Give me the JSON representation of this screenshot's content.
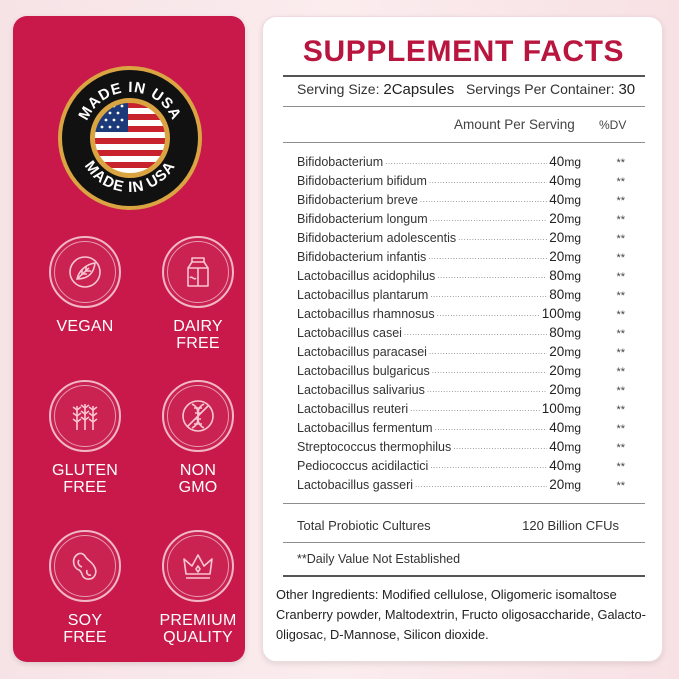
{
  "badge": {
    "top_text": "MADE IN USA",
    "bottom_text": "MADE IN USA"
  },
  "features": [
    {
      "icon": "vegan-leaf-icon",
      "label": "VEGAN"
    },
    {
      "icon": "milk-carton-icon",
      "label": "DAIRY\nFREE"
    },
    {
      "icon": "wheat-icon",
      "label": "GLUTEN\nFREE"
    },
    {
      "icon": "dna-icon",
      "label": "NON\nGMO"
    },
    {
      "icon": "soybean-icon",
      "label": "SOY\nFREE"
    },
    {
      "icon": "crown-icon",
      "label": "PREMIUM\nQUALITY"
    }
  ],
  "facts": {
    "title": "SUPPLEMENT FACTS",
    "serving_size_label": "Serving Size:",
    "serving_size_value": "2Capsules",
    "servings_label": "Servings Per Container:",
    "servings_value": "30",
    "amount_header": "Amount Per Serving",
    "dv_header": "%DV",
    "ingredients": [
      {
        "name": "Bifidobacterium",
        "amount": "40",
        "unit": "mg",
        "dv": "**"
      },
      {
        "name": "Bifidobacterium bifidum",
        "amount": "40",
        "unit": "mg",
        "dv": "**"
      },
      {
        "name": "Bifidobacterium breve",
        "amount": "40",
        "unit": "mg",
        "dv": "**"
      },
      {
        "name": "Bifidobacterium longum",
        "amount": "20",
        "unit": "mg",
        "dv": "**"
      },
      {
        "name": "Bifidobacterium adolescentis",
        "amount": "20",
        "unit": "mg",
        "dv": "**"
      },
      {
        "name": "Bifidobacterium infantis",
        "amount": "20",
        "unit": "mg",
        "dv": "**"
      },
      {
        "name": "Lactobacillus acidophilus",
        "amount": "80",
        "unit": "mg",
        "dv": "**"
      },
      {
        "name": "Lactobacillus plantarum",
        "amount": "80",
        "unit": "mg",
        "dv": "**"
      },
      {
        "name": "Lactobacillus rhamnosus",
        "amount": "100",
        "unit": "mg",
        "dv": "**"
      },
      {
        "name": "Lactobacillus casei",
        "amount": "80",
        "unit": "mg",
        "dv": "**"
      },
      {
        "name": "Lactobacillus paracasei",
        "amount": "20",
        "unit": "mg",
        "dv": "**"
      },
      {
        "name": "Lactobacillus bulgaricus",
        "amount": "20",
        "unit": "mg",
        "dv": "**"
      },
      {
        "name": "Lactobacillus salivarius",
        "amount": "20",
        "unit": "mg",
        "dv": "**"
      },
      {
        "name": "Lactobacillus reuteri",
        "amount": "100",
        "unit": "mg",
        "dv": "**"
      },
      {
        "name": "Lactobacillus fermentum",
        "amount": "40",
        "unit": "mg",
        "dv": "**"
      },
      {
        "name": "Streptococcus thermophilus",
        "amount": "40",
        "unit": "mg",
        "dv": "**"
      },
      {
        "name": "Pediococcus acidilactici",
        "amount": "40",
        "unit": "mg",
        "dv": "**"
      },
      {
        "name": "Lactobacillus gasseri",
        "amount": "20",
        "unit": "mg",
        "dv": "**"
      }
    ],
    "total_label": "Total Probiotic Cultures",
    "total_value": "120 Billion CFUs",
    "dv_note": "**Daily Value Not Established",
    "other_ingredients": "Other Ingredients: Modified cellulose, Oligomeric isomaltose Cranberry powder, Maltodextrin, Fructo oligosaccharide, Galacto-0ligosac, D-Mannose, Silicon dioxide."
  },
  "colors": {
    "panel_red": "#c8194a",
    "title_red": "#b8163e",
    "badge_gold": "#d9a441",
    "badge_black": "#111111"
  }
}
